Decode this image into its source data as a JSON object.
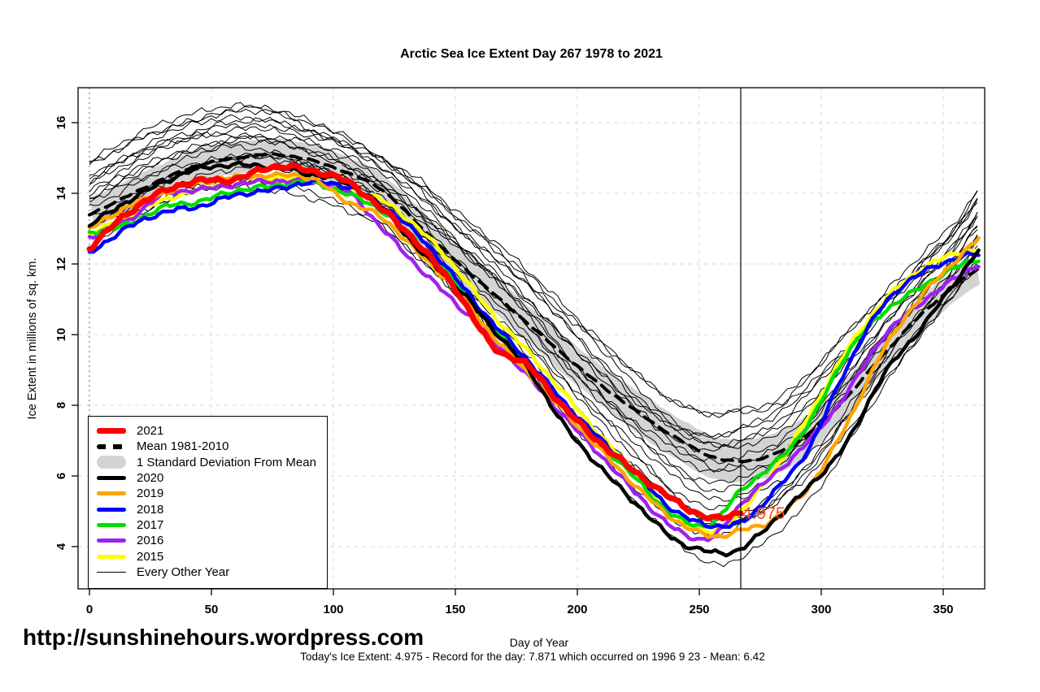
{
  "title": "Arctic Sea Ice Extent Day 267 1978 to 2021",
  "watermark": "http://sunshinehours.wordpress.com",
  "footnote": "Today's Ice Extent: 4.975  - Record for the day: 7.871 which occurred on 1996 9 23  - Mean: 6.42",
  "annotation": {
    "day": 267,
    "label": "4.975",
    "color": "#ff4a21"
  },
  "axes": {
    "x_label": "Day of Year",
    "y_label": "Ice Extent in millions of sq. km.",
    "x_ticks": [
      0,
      50,
      100,
      150,
      200,
      250,
      300,
      350
    ],
    "y_ticks": [
      4,
      6,
      8,
      10,
      12,
      14,
      16
    ],
    "x_range": [
      0,
      365
    ],
    "grid": true,
    "grid_color": "#d9d9d9"
  },
  "legend": {
    "items": [
      {
        "label": "2021",
        "color": "#ff0000",
        "style": "thick"
      },
      {
        "label": "Mean 1981-2010",
        "color": "#000000",
        "style": "dashed"
      },
      {
        "label": "1 Standard Deviation From Mean",
        "color": "#d3d3d3",
        "style": "band"
      },
      {
        "label": "2020",
        "color": "#000000",
        "style": "solid"
      },
      {
        "label": "2019",
        "color": "#ffa500",
        "style": "solid"
      },
      {
        "label": "2018",
        "color": "#0000ff",
        "style": "solid"
      },
      {
        "label": "2017",
        "color": "#00dd00",
        "style": "solid"
      },
      {
        "label": "2016",
        "color": "#a020f0",
        "style": "solid"
      },
      {
        "label": "2015",
        "color": "#ffff00",
        "style": "solid"
      },
      {
        "label": "Every Other Year",
        "color": "#000000",
        "style": "thin"
      }
    ]
  },
  "chart_data": {
    "type": "line",
    "title": "Arctic Sea Ice Extent Day 267 1978 to 2021",
    "xlabel": "Day of Year",
    "ylabel": "Ice Extent in millions of sq. km.",
    "xlim": [
      0,
      365
    ],
    "ylim": [
      2.8,
      17.0
    ],
    "vertical_line_day": 267,
    "todays_ice_extent": 4.975,
    "record_for_day": 7.871,
    "record_year_date": "1996 9 23",
    "mean_for_day": 6.42,
    "x_sample_days": [
      0,
      15,
      30,
      45,
      60,
      75,
      90,
      105,
      120,
      135,
      150,
      165,
      180,
      195,
      210,
      225,
      240,
      255,
      267,
      280,
      295,
      310,
      325,
      340,
      355,
      365
    ],
    "series": [
      {
        "name": "2021",
        "color": "#ff0000",
        "width": 7,
        "end_day": 267,
        "values": [
          12.45,
          13.4,
          14.05,
          14.35,
          14.4,
          14.75,
          14.65,
          14.35,
          13.55,
          12.55,
          11.3,
          9.7,
          9.1,
          7.9,
          6.9,
          6.05,
          5.3,
          4.8,
          4.975
        ]
      },
      {
        "name": "2020",
        "color": "#000000",
        "width": 4.5,
        "values": [
          13.1,
          13.75,
          14.3,
          14.7,
          14.8,
          14.75,
          14.55,
          14.3,
          13.6,
          12.4,
          11.4,
          10.2,
          9.0,
          7.4,
          6.2,
          5.15,
          4.2,
          3.85,
          3.93,
          4.7,
          5.7,
          6.9,
          8.8,
          10.1,
          11.5,
          12.45
        ]
      },
      {
        "name": "2019",
        "color": "#ffa500",
        "width": 4.5,
        "values": [
          13.0,
          13.6,
          14.0,
          14.3,
          14.45,
          14.5,
          14.45,
          13.8,
          13.3,
          12.3,
          11.3,
          10.0,
          8.9,
          7.8,
          6.7,
          5.65,
          4.75,
          4.3,
          4.46,
          4.75,
          5.7,
          7.4,
          9.5,
          11.0,
          12.1,
          12.75
        ]
      },
      {
        "name": "2018",
        "color": "#0000ff",
        "width": 4.5,
        "values": [
          12.3,
          13.0,
          13.45,
          13.63,
          13.95,
          14.1,
          14.3,
          14.2,
          13.65,
          12.8,
          11.6,
          10.35,
          9.25,
          8.05,
          7.0,
          6.0,
          5.0,
          4.6,
          4.69,
          5.5,
          6.8,
          9.0,
          10.8,
          11.7,
          12.15,
          12.3
        ]
      },
      {
        "name": "2017",
        "color": "#00dd00",
        "width": 4.5,
        "values": [
          12.9,
          13.1,
          13.6,
          13.77,
          14.07,
          14.2,
          14.3,
          14.0,
          13.5,
          12.6,
          11.5,
          10.3,
          9.2,
          8.0,
          6.9,
          5.85,
          4.85,
          4.65,
          5.6,
          6.3,
          7.5,
          9.4,
          10.6,
          11.3,
          11.9,
          12.15
        ]
      },
      {
        "name": "2016",
        "color": "#a020f0",
        "width": 4.5,
        "values": [
          12.75,
          13.2,
          13.95,
          14.1,
          14.25,
          14.35,
          14.3,
          14.1,
          13.0,
          11.9,
          10.9,
          9.9,
          8.8,
          7.65,
          6.55,
          5.45,
          4.5,
          4.25,
          5.2,
          6.0,
          7.0,
          8.3,
          9.9,
          10.85,
          11.6,
          12.0
        ]
      },
      {
        "name": "2015",
        "color": "#ffff00",
        "width": 4.5,
        "values": [
          12.85,
          13.3,
          13.8,
          14.1,
          14.4,
          14.45,
          14.35,
          14.15,
          13.8,
          13.0,
          11.9,
          10.6,
          9.5,
          8.3,
          7.1,
          6.0,
          4.9,
          4.4,
          5.0,
          6.1,
          7.7,
          9.5,
          10.9,
          11.8,
          12.3,
          12.4
        ]
      }
    ],
    "mean_1981_2010": {
      "name": "Mean 1981-2010",
      "color": "#000000",
      "style": "dashed",
      "width": 4,
      "values": [
        13.4,
        13.9,
        14.4,
        14.8,
        15.0,
        15.1,
        14.95,
        14.6,
        14.1,
        13.1,
        12.1,
        11.2,
        10.3,
        9.4,
        8.55,
        7.8,
        7.1,
        6.55,
        6.42,
        6.6,
        7.2,
        8.2,
        9.4,
        10.5,
        11.4,
        11.9
      ]
    },
    "std_dev_band": {
      "name": "1 Standard Deviation From Mean",
      "color": "#d3d3d3",
      "half_width": [
        0.45,
        0.45,
        0.45,
        0.45,
        0.45,
        0.45,
        0.45,
        0.45,
        0.45,
        0.5,
        0.5,
        0.5,
        0.5,
        0.55,
        0.55,
        0.6,
        0.6,
        0.6,
        0.6,
        0.6,
        0.55,
        0.55,
        0.5,
        0.5,
        0.45,
        0.45
      ]
    },
    "ensemble": {
      "name": "Every Other Year",
      "color": "#000000",
      "count": 19,
      "width": 1,
      "envelope_top": [
        14.9,
        15.5,
        16.0,
        16.3,
        16.5,
        16.45,
        16.1,
        15.7,
        15.1,
        14.4,
        13.5,
        12.7,
        11.8,
        10.8,
        9.8,
        8.85,
        8.1,
        7.75,
        7.87,
        8.1,
        8.9,
        10.0,
        11.1,
        12.2,
        13.2,
        14.2
      ],
      "envelope_bottom": [
        12.4,
        12.9,
        13.4,
        13.8,
        14.0,
        14.0,
        13.85,
        13.5,
        13.0,
        12.0,
        11.0,
        9.9,
        8.8,
        7.4,
        6.2,
        5.2,
        4.2,
        3.5,
        3.7,
        4.3,
        5.3,
        6.7,
        8.3,
        9.7,
        11.0,
        11.9
      ]
    }
  }
}
